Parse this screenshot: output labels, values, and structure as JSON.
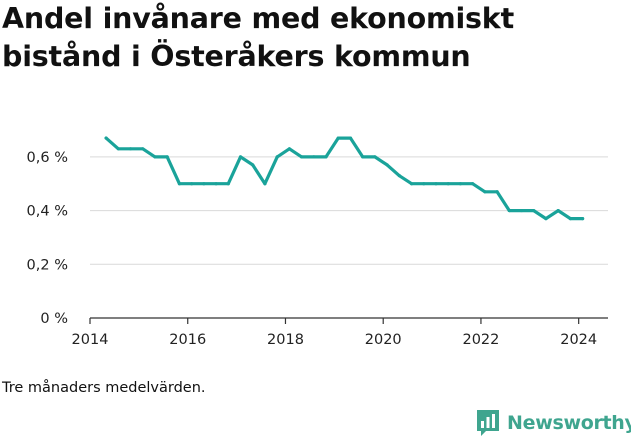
{
  "title_lines": [
    "Andel invånare med ekonomiskt",
    "bistånd i Österåkers kommun"
  ],
  "caption": "Tre månaders medelvärden.",
  "brand": {
    "name": "Newsworthy",
    "icon": "bar-chart-logo-icon",
    "color": "#3fa58f"
  },
  "colors": {
    "line": "#1aa39a",
    "grid": "#d9d9d9",
    "axis": "#333333"
  },
  "chart_data": {
    "type": "line",
    "title": "Andel invånare med ekonomiskt bistånd i Österåkers kommun",
    "xlabel": "",
    "ylabel": "",
    "x_unit": "year",
    "xlim": [
      2014,
      2024.6
    ],
    "ylim": [
      0,
      0.7
    ],
    "x_ticks": [
      2014,
      2016,
      2018,
      2020,
      2022,
      2024
    ],
    "y_ticks": [
      {
        "value": 0,
        "label": "0 %"
      },
      {
        "value": 0.2,
        "label": "0,2 %"
      },
      {
        "value": 0.4,
        "label": "0,4 %"
      },
      {
        "value": 0.6,
        "label": "0,6 %"
      }
    ],
    "grid": "horizontal",
    "series": [
      {
        "x": [
          2014.33,
          2014.58,
          2014.83,
          2015.08,
          2015.33,
          2015.58,
          2015.83,
          2016.08,
          2016.33,
          2016.58,
          2016.83,
          2017.08,
          2017.33,
          2017.58,
          2017.83,
          2018.08,
          2018.33,
          2018.58,
          2018.83,
          2019.08,
          2019.33,
          2019.58,
          2019.83,
          2020.08,
          2020.33,
          2020.58,
          2020.83,
          2021.08,
          2021.33,
          2021.58,
          2021.83,
          2022.08,
          2022.33,
          2022.58,
          2022.83,
          2023.08,
          2023.33,
          2023.58,
          2023.83,
          2024.08
        ],
        "values": [
          0.67,
          0.63,
          0.63,
          0.63,
          0.6,
          0.6,
          0.5,
          0.5,
          0.5,
          0.5,
          0.5,
          0.6,
          0.57,
          0.5,
          0.6,
          0.63,
          0.6,
          0.6,
          0.6,
          0.67,
          0.67,
          0.6,
          0.6,
          0.57,
          0.53,
          0.5,
          0.5,
          0.5,
          0.5,
          0.5,
          0.5,
          0.47,
          0.47,
          0.4,
          0.4,
          0.4,
          0.37,
          0.4,
          0.37,
          0.37
        ]
      }
    ]
  }
}
